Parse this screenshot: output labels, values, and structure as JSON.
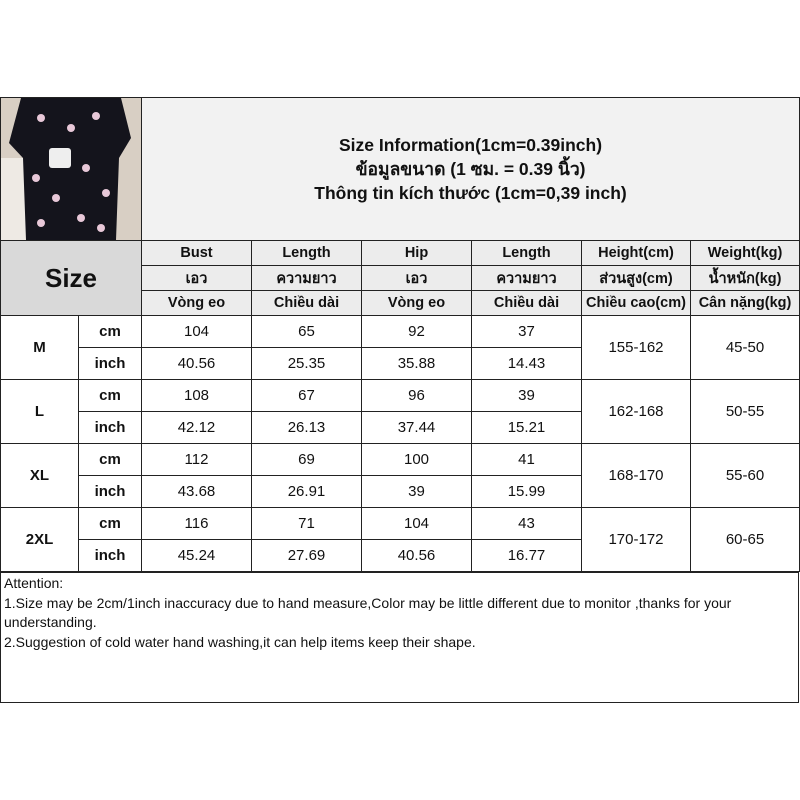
{
  "title": {
    "line1": "Size Information(1cm=0.39inch)",
    "line2": "ข้อมูลขนาด (1 ซม. = 0.39 นิ้ว)",
    "line3": "Thông tin kích thước (1cm=0,39 inch)"
  },
  "size_label": "Size",
  "headers": [
    [
      "Bust",
      "เอว",
      "Vòng eo"
    ],
    [
      "Length",
      "ความยาว",
      "Chiều dài"
    ],
    [
      "Hip",
      "เอว",
      "Vòng eo"
    ],
    [
      "Length",
      "ความยาว",
      "Chiều dài"
    ],
    [
      "Height(cm)",
      "ส่วนสูง(cm)",
      "Chiều cao(cm)"
    ],
    [
      "Weight(kg)",
      "น้ำหนัก(kg)",
      "Cân nặng(kg)"
    ]
  ],
  "units": {
    "cm": "cm",
    "inch": "inch"
  },
  "rows": [
    {
      "size": "M",
      "cm": [
        "104",
        "65",
        "92",
        "37"
      ],
      "inch": [
        "40.56",
        "25.35",
        "35.88",
        "14.43"
      ],
      "height": "155-162",
      "weight": "45-50"
    },
    {
      "size": "L",
      "cm": [
        "108",
        "67",
        "96",
        "39"
      ],
      "inch": [
        "42.12",
        "26.13",
        "37.44",
        "15.21"
      ],
      "height": "162-168",
      "weight": "50-55"
    },
    {
      "size": "XL",
      "cm": [
        "112",
        "69",
        "100",
        "41"
      ],
      "inch": [
        "43.68",
        "26.91",
        "39",
        "15.99"
      ],
      "height": "168-170",
      "weight": "55-60"
    },
    {
      "size": "2XL",
      "cm": [
        "116",
        "71",
        "104",
        "43"
      ],
      "inch": [
        "45.24",
        "27.69",
        "40.56",
        "16.77"
      ],
      "height": "170-172",
      "weight": "60-65"
    }
  ],
  "attention": {
    "heading": "Attention:",
    "note1": "1.Size may be 2cm/1inch inaccuracy due to hand measure,Color may be little different due to monitor ,thanks for your understanding.",
    "note2": "2.Suggestion of cold water hand washing,it can help items keep their shape."
  }
}
